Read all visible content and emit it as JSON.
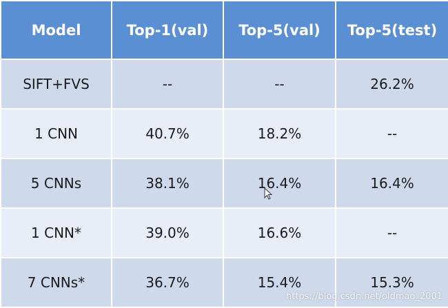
{
  "table": {
    "headers": [
      "Model",
      "Top-1(val)",
      "Top-5(val)",
      "Top-5(test)"
    ],
    "rows": [
      [
        "SIFT+FVS",
        "--",
        "--",
        "26.2%"
      ],
      [
        "1 CNN",
        "40.7%",
        "18.2%",
        "--"
      ],
      [
        "5 CNNs",
        "38.1%",
        "16.4%",
        "16.4%"
      ],
      [
        "1 CNN*",
        "39.0%",
        "16.6%",
        "--"
      ],
      [
        "7 CNNs*",
        "36.7%",
        "15.4%",
        "15.3%"
      ]
    ]
  },
  "watermark": "https://blog.csdn.net/oldmao_2001",
  "colors": {
    "header_bg": "#5b8fd4",
    "row_dark": "#cfd9ec",
    "row_light": "#e8edf7"
  }
}
